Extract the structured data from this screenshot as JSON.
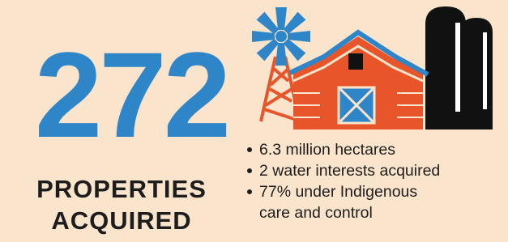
{
  "headline": {
    "number": "272",
    "label_lines": [
      "PROPERTIES",
      "ACQUIRED"
    ]
  },
  "bullets": [
    {
      "lines": [
        "6.3 million hectares"
      ]
    },
    {
      "lines": [
        "2 water interests acquired"
      ]
    },
    {
      "lines": [
        "77% under Indigenous",
        "care and control"
      ]
    }
  ]
}
